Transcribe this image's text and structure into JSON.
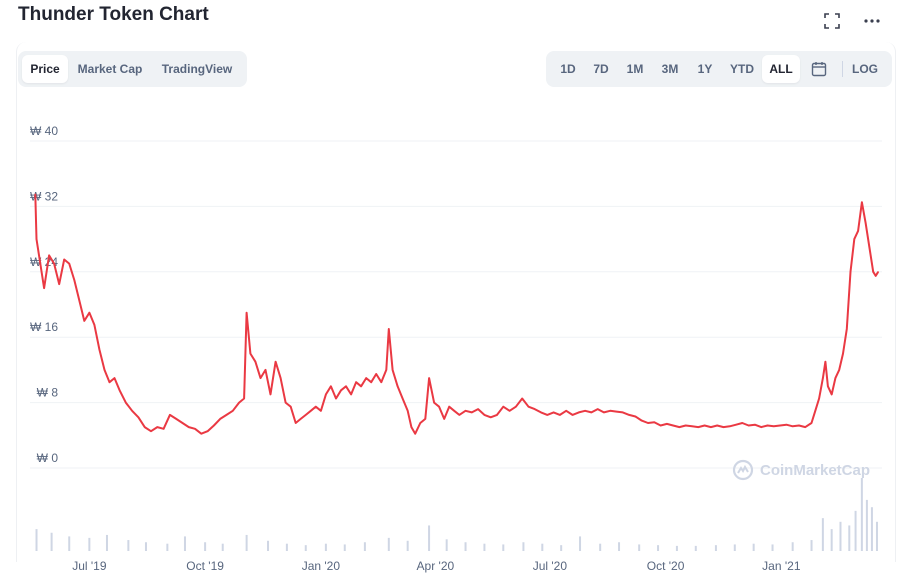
{
  "header": {
    "title": "Thunder Token Chart",
    "fullscreen_icon": "fullscreen-icon",
    "more_icon": "more-icon"
  },
  "tabs": [
    {
      "label": "Price",
      "active": true
    },
    {
      "label": "Market Cap",
      "active": false
    },
    {
      "label": "TradingView",
      "active": false
    }
  ],
  "ranges": [
    {
      "label": "1D",
      "active": false
    },
    {
      "label": "7D",
      "active": false
    },
    {
      "label": "1M",
      "active": false
    },
    {
      "label": "3M",
      "active": false
    },
    {
      "label": "1Y",
      "active": false
    },
    {
      "label": "YTD",
      "active": false
    },
    {
      "label": "ALL",
      "active": true
    }
  ],
  "calendar_icon": "calendar-icon",
  "log_label": "LOG",
  "watermark": "CoinMarketCap",
  "colors": {
    "line": "#ea3943",
    "grid": "#eff2f5",
    "tick_text": "#58667e",
    "volume": "#cfd6e4"
  },
  "chart_data": {
    "type": "line",
    "title": "Thunder Token Chart",
    "currency_symbol": "₩",
    "ylim": [
      0,
      40
    ],
    "yticks": [
      {
        "value": 0,
        "label": "₩ 0"
      },
      {
        "value": 8,
        "label": "₩ 8"
      },
      {
        "value": 16,
        "label": "₩ 16"
      },
      {
        "value": 24,
        "label": "₩ 24"
      },
      {
        "value": 32,
        "label": "₩ 32"
      },
      {
        "value": 40,
        "label": "₩ 40"
      }
    ],
    "xlim": [
      "2019-05-18",
      "2021-03-22"
    ],
    "xticks": [
      {
        "date": "2019-07-01",
        "label": "Jul '19"
      },
      {
        "date": "2019-10-01",
        "label": "Oct '19"
      },
      {
        "date": "2020-01-01",
        "label": "Jan '20"
      },
      {
        "date": "2020-04-01",
        "label": "Apr '20"
      },
      {
        "date": "2020-07-01",
        "label": "Jul '20"
      },
      {
        "date": "2020-10-01",
        "label": "Oct '20"
      },
      {
        "date": "2021-01-01",
        "label": "Jan '21"
      }
    ],
    "grid": true,
    "legend": "none",
    "series": [
      {
        "values": [
          [
            "2019-05-19",
            33.5
          ],
          [
            "2019-05-20",
            28
          ],
          [
            "2019-05-23",
            25
          ],
          [
            "2019-05-26",
            22
          ],
          [
            "2019-05-30",
            26
          ],
          [
            "2019-06-03",
            25
          ],
          [
            "2019-06-07",
            22.5
          ],
          [
            "2019-06-11",
            25.5
          ],
          [
            "2019-06-15",
            25
          ],
          [
            "2019-06-19",
            23
          ],
          [
            "2019-06-23",
            20.5
          ],
          [
            "2019-06-27",
            18
          ],
          [
            "2019-07-01",
            19
          ],
          [
            "2019-07-05",
            17.5
          ],
          [
            "2019-07-09",
            14.5
          ],
          [
            "2019-07-13",
            12
          ],
          [
            "2019-07-17",
            10.5
          ],
          [
            "2019-07-21",
            11
          ],
          [
            "2019-07-25",
            9.5
          ],
          [
            "2019-07-30",
            8
          ],
          [
            "2019-08-04",
            7
          ],
          [
            "2019-08-09",
            6.2
          ],
          [
            "2019-08-14",
            5
          ],
          [
            "2019-08-19",
            4.5
          ],
          [
            "2019-08-24",
            5
          ],
          [
            "2019-08-29",
            4.8
          ],
          [
            "2019-09-03",
            6.5
          ],
          [
            "2019-09-08",
            6
          ],
          [
            "2019-09-13",
            5.5
          ],
          [
            "2019-09-18",
            5
          ],
          [
            "2019-09-23",
            4.8
          ],
          [
            "2019-09-28",
            4.2
          ],
          [
            "2019-10-03",
            4.5
          ],
          [
            "2019-10-08",
            5.2
          ],
          [
            "2019-10-13",
            6
          ],
          [
            "2019-10-18",
            6.5
          ],
          [
            "2019-10-23",
            7
          ],
          [
            "2019-10-28",
            8
          ],
          [
            "2019-11-01",
            8.5
          ],
          [
            "2019-11-03",
            19
          ],
          [
            "2019-11-06",
            14
          ],
          [
            "2019-11-10",
            13
          ],
          [
            "2019-11-14",
            11
          ],
          [
            "2019-11-18",
            12
          ],
          [
            "2019-11-22",
            9
          ],
          [
            "2019-11-26",
            13
          ],
          [
            "2019-11-30",
            11
          ],
          [
            "2019-12-04",
            8
          ],
          [
            "2019-12-08",
            7.5
          ],
          [
            "2019-12-12",
            5.5
          ],
          [
            "2019-12-16",
            6
          ],
          [
            "2019-12-20",
            6.5
          ],
          [
            "2019-12-24",
            7
          ],
          [
            "2019-12-28",
            7.5
          ],
          [
            "2020-01-01",
            7
          ],
          [
            "2020-01-05",
            9
          ],
          [
            "2020-01-09",
            10
          ],
          [
            "2020-01-13",
            8.5
          ],
          [
            "2020-01-17",
            9.5
          ],
          [
            "2020-01-21",
            10
          ],
          [
            "2020-01-25",
            9
          ],
          [
            "2020-01-29",
            10.5
          ],
          [
            "2020-02-02",
            10
          ],
          [
            "2020-02-06",
            11
          ],
          [
            "2020-02-10",
            10.5
          ],
          [
            "2020-02-14",
            11.5
          ],
          [
            "2020-02-18",
            10.5
          ],
          [
            "2020-02-22",
            12
          ],
          [
            "2020-02-24",
            17
          ],
          [
            "2020-02-27",
            12
          ],
          [
            "2020-03-02",
            10
          ],
          [
            "2020-03-06",
            8.5
          ],
          [
            "2020-03-10",
            7
          ],
          [
            "2020-03-13",
            5
          ],
          [
            "2020-03-16",
            4.2
          ],
          [
            "2020-03-20",
            5.5
          ],
          [
            "2020-03-24",
            6
          ],
          [
            "2020-03-27",
            11
          ],
          [
            "2020-03-31",
            8
          ],
          [
            "2020-04-04",
            7.5
          ],
          [
            "2020-04-08",
            6
          ],
          [
            "2020-04-12",
            7.5
          ],
          [
            "2020-04-16",
            7
          ],
          [
            "2020-04-20",
            6.5
          ],
          [
            "2020-04-25",
            7
          ],
          [
            "2020-04-30",
            6.8
          ],
          [
            "2020-05-05",
            7.2
          ],
          [
            "2020-05-10",
            6.5
          ],
          [
            "2020-05-15",
            6.2
          ],
          [
            "2020-05-20",
            6.5
          ],
          [
            "2020-05-25",
            7.5
          ],
          [
            "2020-05-30",
            7
          ],
          [
            "2020-06-04",
            7.5
          ],
          [
            "2020-06-09",
            8.5
          ],
          [
            "2020-06-14",
            7.5
          ],
          [
            "2020-06-19",
            7.2
          ],
          [
            "2020-06-24",
            6.8
          ],
          [
            "2020-06-29",
            6.5
          ],
          [
            "2020-07-04",
            6.8
          ],
          [
            "2020-07-09",
            6.5
          ],
          [
            "2020-07-14",
            7
          ],
          [
            "2020-07-19",
            6.5
          ],
          [
            "2020-07-24",
            6.8
          ],
          [
            "2020-07-29",
            7
          ],
          [
            "2020-08-03",
            6.8
          ],
          [
            "2020-08-08",
            7.2
          ],
          [
            "2020-08-13",
            6.8
          ],
          [
            "2020-08-18",
            7
          ],
          [
            "2020-08-23",
            6.9
          ],
          [
            "2020-08-28",
            6.8
          ],
          [
            "2020-09-02",
            6.5
          ],
          [
            "2020-09-07",
            6.3
          ],
          [
            "2020-09-12",
            5.8
          ],
          [
            "2020-09-17",
            5.5
          ],
          [
            "2020-09-22",
            5.6
          ],
          [
            "2020-09-27",
            5.2
          ],
          [
            "2020-10-02",
            5.4
          ],
          [
            "2020-10-07",
            5.2
          ],
          [
            "2020-10-12",
            5
          ],
          [
            "2020-10-17",
            5.2
          ],
          [
            "2020-10-22",
            5.1
          ],
          [
            "2020-10-27",
            5
          ],
          [
            "2020-11-01",
            5.2
          ],
          [
            "2020-11-06",
            5
          ],
          [
            "2020-11-11",
            5.2
          ],
          [
            "2020-11-16",
            5
          ],
          [
            "2020-11-21",
            5.1
          ],
          [
            "2020-11-26",
            5.3
          ],
          [
            "2020-12-01",
            5.5
          ],
          [
            "2020-12-06",
            5.2
          ],
          [
            "2020-12-11",
            5.3
          ],
          [
            "2020-12-16",
            5
          ],
          [
            "2020-12-21",
            5.2
          ],
          [
            "2020-12-26",
            5.1
          ],
          [
            "2020-12-31",
            5.2
          ],
          [
            "2021-01-05",
            5.3
          ],
          [
            "2021-01-10",
            5.1
          ],
          [
            "2021-01-15",
            5.2
          ],
          [
            "2021-01-20",
            5
          ],
          [
            "2021-01-25",
            5.5
          ],
          [
            "2021-01-28",
            7
          ],
          [
            "2021-01-31",
            8.5
          ],
          [
            "2021-02-03",
            11
          ],
          [
            "2021-02-05",
            13
          ],
          [
            "2021-02-07",
            10
          ],
          [
            "2021-02-10",
            9
          ],
          [
            "2021-02-13",
            11
          ],
          [
            "2021-02-16",
            12
          ],
          [
            "2021-02-19",
            14
          ],
          [
            "2021-02-22",
            17
          ],
          [
            "2021-02-25",
            24
          ],
          [
            "2021-02-28",
            28
          ],
          [
            "2021-03-03",
            29
          ],
          [
            "2021-03-06",
            32.5
          ],
          [
            "2021-03-09",
            30
          ],
          [
            "2021-03-12",
            27
          ],
          [
            "2021-03-15",
            24
          ],
          [
            "2021-03-17",
            23.5
          ],
          [
            "2021-03-19",
            24
          ]
        ]
      }
    ],
    "volume": {
      "ylim": [
        0,
        100
      ],
      "values": [
        [
          "2019-05-20",
          30
        ],
        [
          "2019-06-01",
          25
        ],
        [
          "2019-06-15",
          20
        ],
        [
          "2019-07-01",
          18
        ],
        [
          "2019-07-15",
          22
        ],
        [
          "2019-08-01",
          15
        ],
        [
          "2019-08-15",
          12
        ],
        [
          "2019-09-01",
          10
        ],
        [
          "2019-09-15",
          20
        ],
        [
          "2019-10-01",
          12
        ],
        [
          "2019-10-15",
          10
        ],
        [
          "2019-11-03",
          22
        ],
        [
          "2019-11-20",
          14
        ],
        [
          "2019-12-05",
          10
        ],
        [
          "2019-12-20",
          8
        ],
        [
          "2020-01-05",
          10
        ],
        [
          "2020-01-20",
          9
        ],
        [
          "2020-02-05",
          12
        ],
        [
          "2020-02-24",
          18
        ],
        [
          "2020-03-10",
          14
        ],
        [
          "2020-03-27",
          35
        ],
        [
          "2020-04-10",
          16
        ],
        [
          "2020-04-25",
          12
        ],
        [
          "2020-05-10",
          10
        ],
        [
          "2020-05-25",
          9
        ],
        [
          "2020-06-10",
          12
        ],
        [
          "2020-06-25",
          10
        ],
        [
          "2020-07-10",
          8
        ],
        [
          "2020-07-25",
          20
        ],
        [
          "2020-08-10",
          10
        ],
        [
          "2020-08-25",
          12
        ],
        [
          "2020-09-10",
          9
        ],
        [
          "2020-09-25",
          8
        ],
        [
          "2020-10-10",
          7
        ],
        [
          "2020-10-25",
          7
        ],
        [
          "2020-11-10",
          8
        ],
        [
          "2020-11-25",
          9
        ],
        [
          "2020-12-10",
          10
        ],
        [
          "2020-12-25",
          9
        ],
        [
          "2021-01-10",
          12
        ],
        [
          "2021-01-25",
          15
        ],
        [
          "2021-02-03",
          45
        ],
        [
          "2021-02-10",
          30
        ],
        [
          "2021-02-17",
          40
        ],
        [
          "2021-02-24",
          35
        ],
        [
          "2021-03-01",
          55
        ],
        [
          "2021-03-06",
          100
        ],
        [
          "2021-03-10",
          70
        ],
        [
          "2021-03-14",
          60
        ],
        [
          "2021-03-18",
          40
        ]
      ]
    }
  }
}
